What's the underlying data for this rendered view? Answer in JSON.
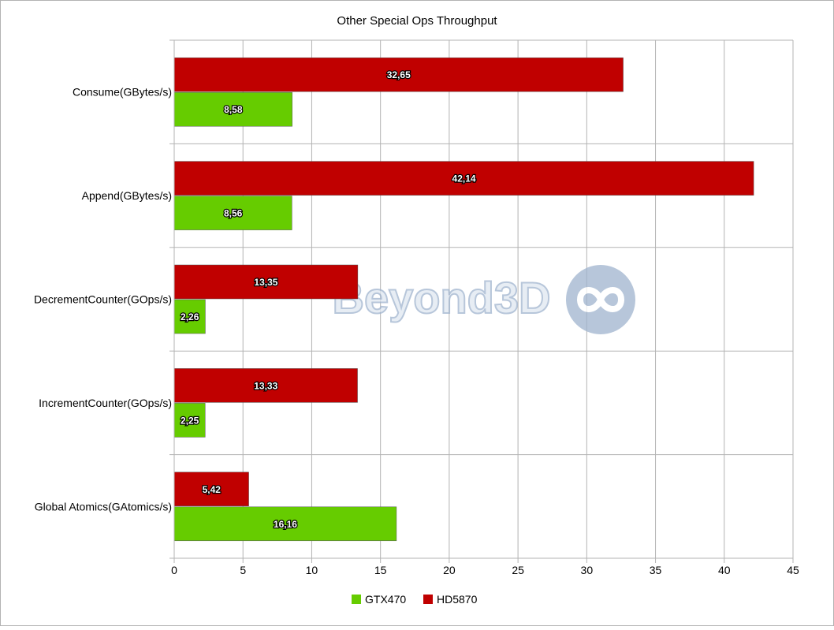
{
  "chart_data": {
    "type": "bar",
    "orientation": "horizontal",
    "title": "Other Special Ops Throughput",
    "xlabel": "",
    "ylabel": "",
    "categories": [
      "Consume(GBytes/s)",
      "Append(GBytes/s)",
      "DecrementCounter(GOps/s)",
      "IncrementCounter(GOps/s)",
      "Global Atomics(GAtomics/s)"
    ],
    "series": [
      {
        "name": "HD5870",
        "color": "#c00000",
        "values": [
          32.65,
          42.14,
          13.35,
          13.33,
          5.42
        ],
        "labels": [
          "32,65",
          "42,14",
          "13,35",
          "13,33",
          "5,42"
        ]
      },
      {
        "name": "GTX470",
        "color": "#66cc00",
        "values": [
          8.58,
          8.56,
          2.26,
          2.25,
          16.16
        ],
        "labels": [
          "8,58",
          "8,56",
          "2,26",
          "2,25",
          "16,16"
        ]
      }
    ],
    "xlim": [
      0,
      45
    ],
    "xticks": [
      0,
      5,
      10,
      15,
      20,
      25,
      30,
      35,
      40,
      45
    ],
    "xtick_labels": [
      "0",
      "5",
      "10",
      "15",
      "20",
      "25",
      "30",
      "35",
      "40",
      "45"
    ],
    "grid": true,
    "legend": {
      "placement": "bottom",
      "entries": [
        "GTX470",
        "HD5870"
      ]
    },
    "watermark": {
      "text": "Beyond3D",
      "icon": "infinity-logo-icon"
    }
  }
}
